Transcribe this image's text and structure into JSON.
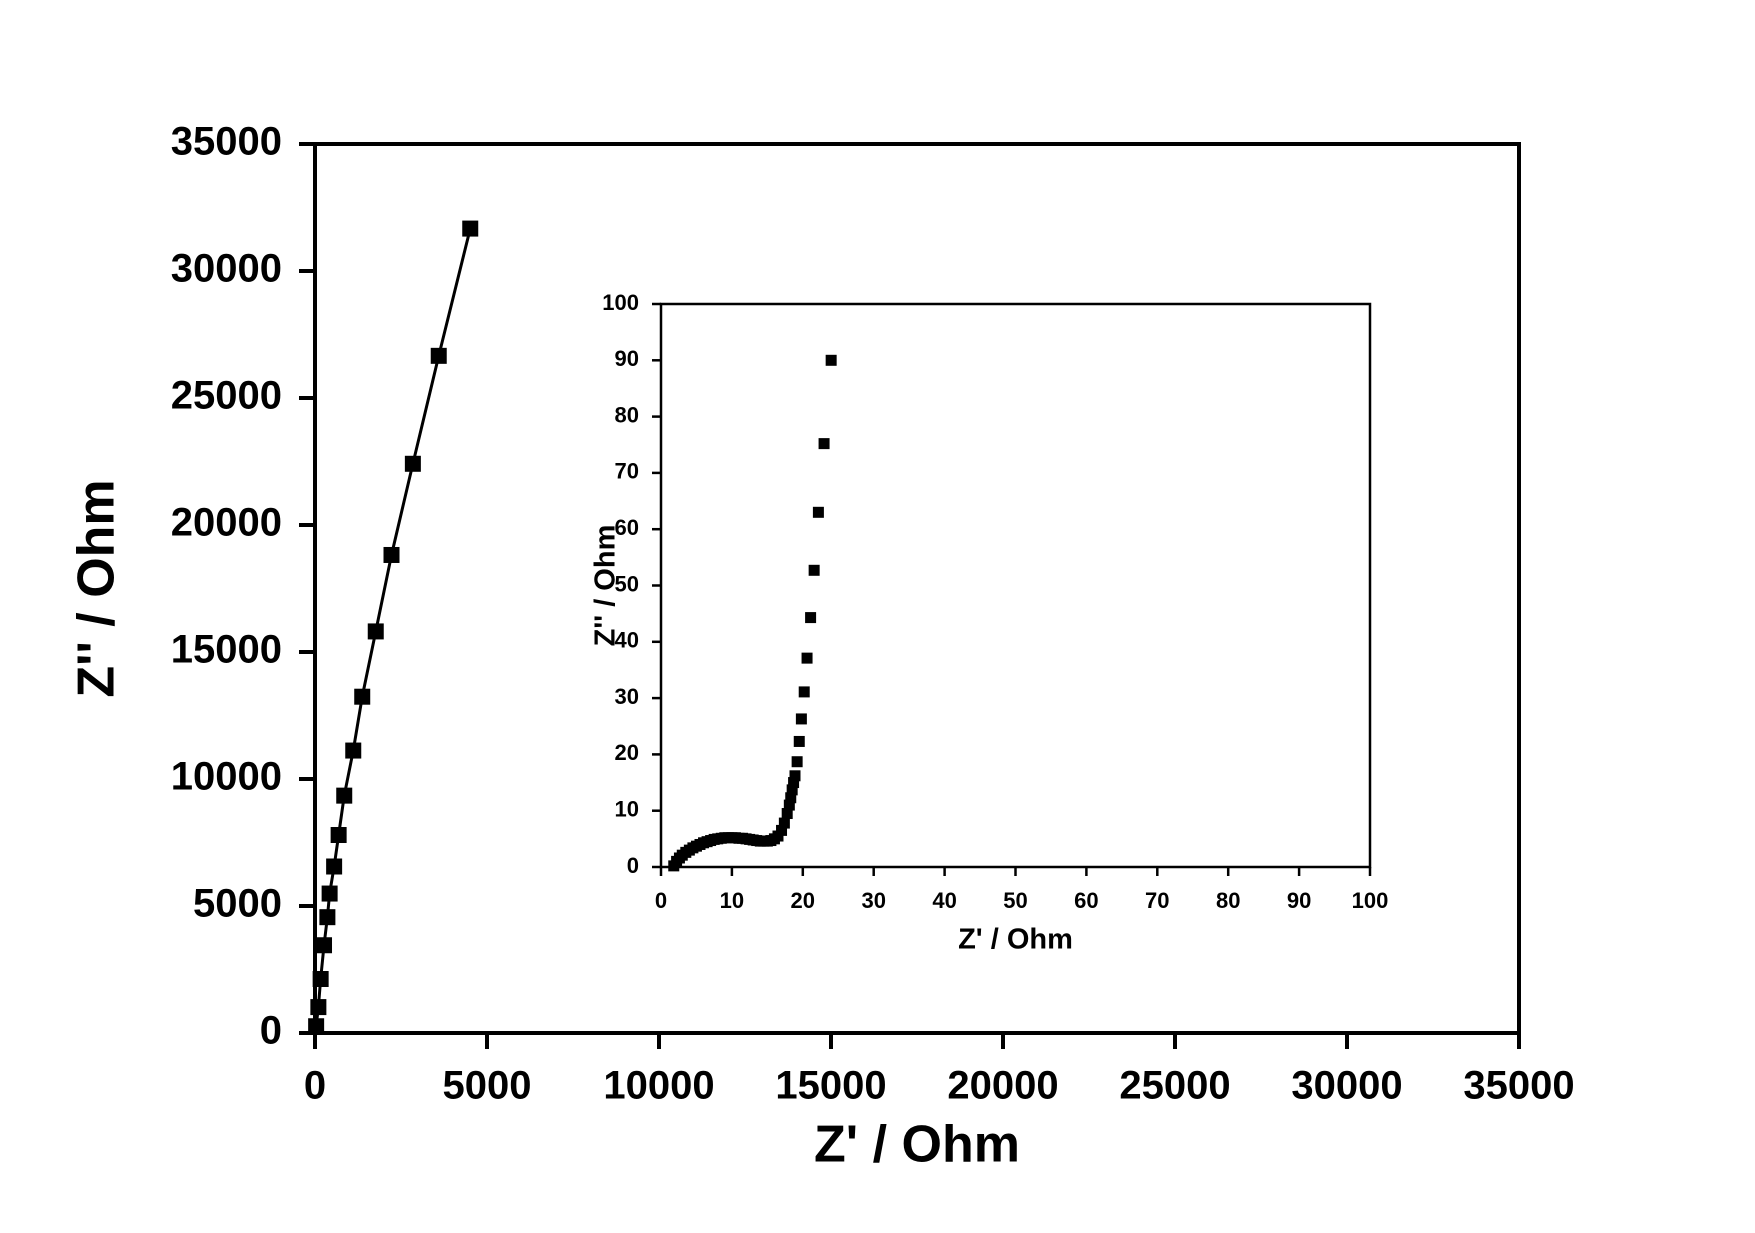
{
  "chart_data": [
    {
      "type": "scatter",
      "line": true,
      "color": "#000000",
      "xlabel": "Z' / Ohm",
      "ylabel": "Z'' / Ohm",
      "x": [
        33,
        98,
        164,
        262,
        360,
        425,
        556,
        687,
        850,
        1112,
        1373,
        1766,
        2224,
        2845,
        3597,
        4513
      ],
      "values": [
        266,
        1020,
        2126,
        3455,
        4560,
        5490,
        6555,
        7795,
        9345,
        11120,
        13240,
        15810,
        18820,
        22410,
        26660,
        31670
      ],
      "xlim": [
        0,
        35000
      ],
      "xticks": [
        0,
        5000,
        10000,
        15000,
        20000,
        25000,
        30000,
        35000
      ],
      "ylim": [
        0,
        35000
      ],
      "yticks": [
        0,
        5000,
        10000,
        15000,
        20000,
        25000,
        30000,
        35000
      ]
    },
    {
      "type": "scatter",
      "line": false,
      "color": "#000000",
      "xlabel": "Z' / Ohm",
      "ylabel": "Z'' / Ohm",
      "x": [
        1.8,
        2.2,
        2.6,
        3,
        3.5,
        4,
        4.5,
        5,
        5.5,
        6,
        6.5,
        7,
        7.5,
        8,
        8.5,
        9,
        9.5,
        10,
        10.5,
        11,
        11.5,
        12,
        12.5,
        13,
        13.5,
        14,
        14.5,
        15,
        15.5,
        16,
        16.5,
        17,
        17.4,
        17.8,
        18.1,
        18.3,
        18.5,
        18.7,
        18.9,
        19.2,
        19.5,
        19.8,
        20.2,
        20.6,
        21.1,
        21.6,
        22.2,
        23,
        24
      ],
      "values": [
        0.2,
        1,
        1.6,
        2.1,
        2.6,
        3,
        3.4,
        3.7,
        4,
        4.3,
        4.5,
        4.7,
        4.9,
        5,
        5.1,
        5.2,
        5.2,
        5.2,
        5.2,
        5.1,
        5.1,
        5,
        4.9,
        4.8,
        4.7,
        4.6,
        4.6,
        4.6,
        4.7,
        5,
        5.5,
        6.5,
        7.8,
        9.5,
        11,
        12.3,
        13.7,
        15,
        16.2,
        18.7,
        22.3,
        26.3,
        31.1,
        37.1,
        44.3,
        52.7,
        63,
        75.2,
        90
      ],
      "xlim": [
        0,
        100
      ],
      "xticks": [
        0,
        10,
        20,
        30,
        40,
        50,
        60,
        70,
        80,
        90,
        100
      ],
      "ylim": [
        0,
        100
      ],
      "yticks": [
        0,
        10,
        20,
        30,
        40,
        50,
        60,
        70,
        80,
        90,
        100
      ]
    }
  ]
}
